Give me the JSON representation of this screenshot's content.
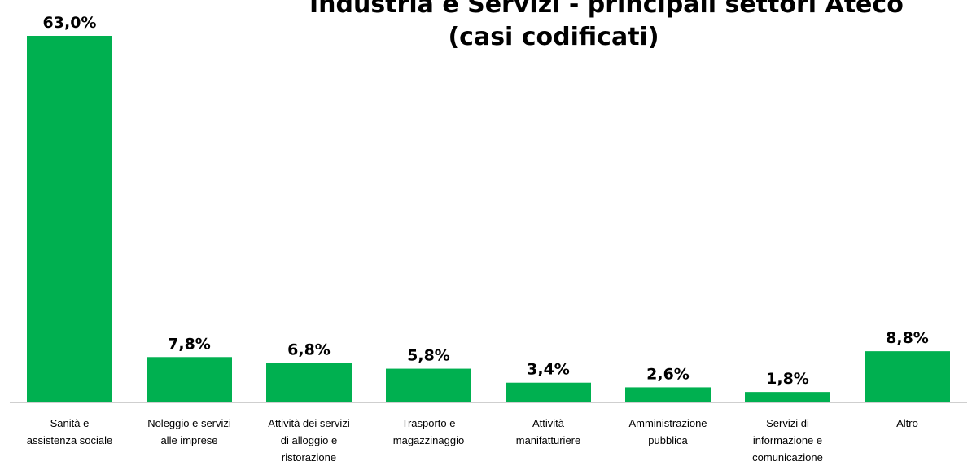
{
  "chart_data": {
    "type": "bar",
    "title_lines": [
      "Industria e Servizi - principali settori Ateco",
      "(casi codificati)"
    ],
    "categories": [
      [
        "Sanità e",
        "assistenza sociale"
      ],
      [
        "Noleggio e servizi",
        "alle imprese"
      ],
      [
        "Attività dei servizi",
        "di alloggio e",
        "ristorazione"
      ],
      [
        "Trasporto e",
        "magazzinaggio"
      ],
      [
        "Attività",
        "manifatturiere"
      ],
      [
        "Amministrazione",
        "pubblica"
      ],
      [
        "Servizi di",
        "informazione e",
        "comunicazione"
      ],
      [
        "Altro"
      ]
    ],
    "values": [
      63.0,
      7.8,
      6.8,
      5.8,
      3.4,
      2.6,
      1.8,
      8.8
    ],
    "value_labels": [
      "63,0%",
      "7,8%",
      "6,8%",
      "5,8%",
      "3,4%",
      "2,6%",
      "1,8%",
      "8,8%"
    ],
    "ylim": [
      0,
      63.0
    ],
    "grid": false,
    "bar_color": "#00b050",
    "axis_color": "#bfbfbf"
  }
}
